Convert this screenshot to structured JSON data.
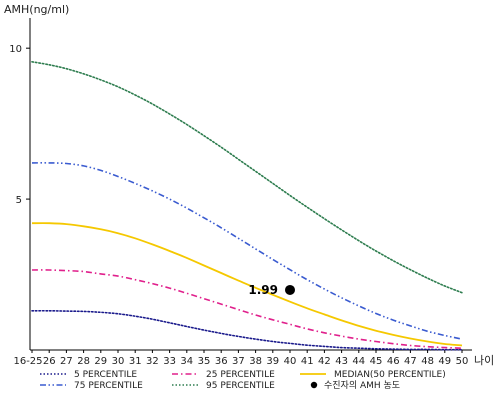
{
  "chart_data": {
    "type": "line",
    "ylabel": "AMH(ng/ml)",
    "xlabel": "나이",
    "ylim": [
      0,
      11
    ],
    "y_ticks": [
      {
        "value": 10,
        "label": "10"
      },
      {
        "value": 5,
        "label": "5"
      }
    ],
    "categories": [
      "16-25",
      "26",
      "27",
      "28",
      "29",
      "30",
      "31",
      "32",
      "33",
      "34",
      "35",
      "36",
      "37",
      "38",
      "39",
      "40",
      "41",
      "42",
      "43",
      "44",
      "45",
      "46",
      "47",
      "48",
      "49",
      "50"
    ],
    "series": [
      {
        "key": "p5",
        "name": "5 PERCENTILE",
        "color": "#1a1a8c",
        "style": "dotted",
        "values": [
          1.3,
          1.3,
          1.29,
          1.28,
          1.25,
          1.2,
          1.12,
          1.02,
          0.9,
          0.78,
          0.66,
          0.55,
          0.45,
          0.36,
          0.28,
          0.22,
          0.16,
          0.12,
          0.08,
          0.06,
          0.04,
          0.03,
          0.02,
          0.02,
          0.01,
          0.01
        ]
      },
      {
        "key": "p25",
        "name": "25 PERCENTILE",
        "color": "#e0208c",
        "style": "dashdot",
        "values": [
          2.65,
          2.65,
          2.63,
          2.6,
          2.52,
          2.45,
          2.33,
          2.2,
          2.05,
          1.88,
          1.7,
          1.52,
          1.34,
          1.16,
          1.0,
          0.85,
          0.7,
          0.57,
          0.46,
          0.36,
          0.28,
          0.21,
          0.15,
          0.11,
          0.08,
          0.06
        ]
      },
      {
        "key": "median",
        "name": "MEDIAN(50 PERCENTILE)",
        "color": "#f5c800",
        "style": "solid",
        "values": [
          4.2,
          4.2,
          4.17,
          4.1,
          4.0,
          3.87,
          3.7,
          3.5,
          3.28,
          3.05,
          2.8,
          2.55,
          2.3,
          2.06,
          1.83,
          1.6,
          1.38,
          1.18,
          0.98,
          0.8,
          0.64,
          0.5,
          0.38,
          0.28,
          0.2,
          0.15
        ]
      },
      {
        "key": "p75",
        "name": "75 PERCENTILE",
        "color": "#3a5bd0",
        "style": "dashdotdot",
        "values": [
          6.2,
          6.2,
          6.18,
          6.1,
          5.95,
          5.75,
          5.52,
          5.27,
          5.0,
          4.7,
          4.38,
          4.05,
          3.7,
          3.35,
          3.0,
          2.66,
          2.33,
          2.02,
          1.73,
          1.46,
          1.21,
          0.99,
          0.8,
          0.62,
          0.48,
          0.36
        ]
      },
      {
        "key": "p95",
        "name": "95 PERCENTILE",
        "color": "#2e7d4f",
        "style": "dotted",
        "values": [
          9.55,
          9.45,
          9.32,
          9.15,
          8.95,
          8.72,
          8.45,
          8.15,
          7.82,
          7.47,
          7.1,
          6.72,
          6.32,
          5.92,
          5.52,
          5.12,
          4.73,
          4.35,
          3.98,
          3.62,
          3.28,
          2.96,
          2.66,
          2.38,
          2.12,
          1.9
        ]
      }
    ],
    "marker": {
      "x": "40",
      "y": 1.99,
      "label": "1.99",
      "legend": "수진자의 AMH 농도"
    },
    "legend_order": [
      "p5",
      "p25",
      "median",
      "p75",
      "p95",
      "marker"
    ],
    "legend_position": "bottom",
    "grid": false
  }
}
